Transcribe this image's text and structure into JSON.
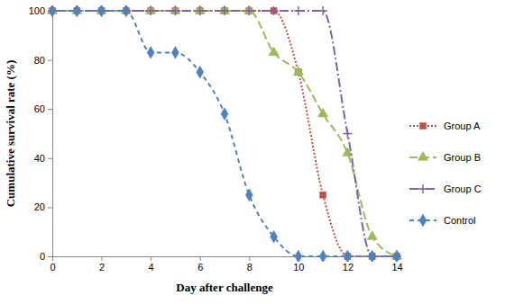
{
  "chart_data": {
    "type": "line",
    "x_label": "Day after challenge",
    "y_label": "Cumulative survival rate (%)",
    "x": [
      0,
      1,
      2,
      3,
      4,
      5,
      6,
      7,
      8,
      9,
      10,
      11,
      12,
      13,
      14
    ],
    "series": [
      {
        "name": "Group A",
        "color": "#c0504d",
        "marker": "square",
        "line_style": "dotted",
        "values": [
          100,
          100,
          100,
          100,
          100,
          100,
          100,
          100,
          100,
          100,
          75,
          25,
          0,
          0,
          0
        ]
      },
      {
        "name": "Group B",
        "color": "#9bbb59",
        "marker": "triangle",
        "line_style": "long-dash",
        "values": [
          100,
          100,
          100,
          100,
          100,
          100,
          100,
          100,
          100,
          83,
          75,
          58,
          42,
          8,
          0
        ]
      },
      {
        "name": "Group C",
        "color": "#8064a2",
        "marker": "plus",
        "line_style": "dash-dot",
        "values": [
          100,
          100,
          100,
          100,
          100,
          100,
          100,
          100,
          100,
          100,
          100,
          100,
          50,
          0,
          0
        ]
      },
      {
        "name": "Control",
        "color": "#4f81bd",
        "marker": "diamond",
        "line_style": "dashed",
        "values": [
          100,
          100,
          100,
          100,
          83,
          83,
          75,
          58,
          25,
          8,
          0,
          0,
          0,
          0,
          0
        ]
      }
    ],
    "xlim": [
      0,
      14
    ],
    "xticks": [
      0,
      2,
      4,
      6,
      8,
      10,
      12,
      14
    ],
    "ylim": [
      0,
      100
    ],
    "yticks": [
      0,
      20,
      40,
      60,
      80,
      100
    ],
    "grid": false,
    "legend": "right"
  }
}
